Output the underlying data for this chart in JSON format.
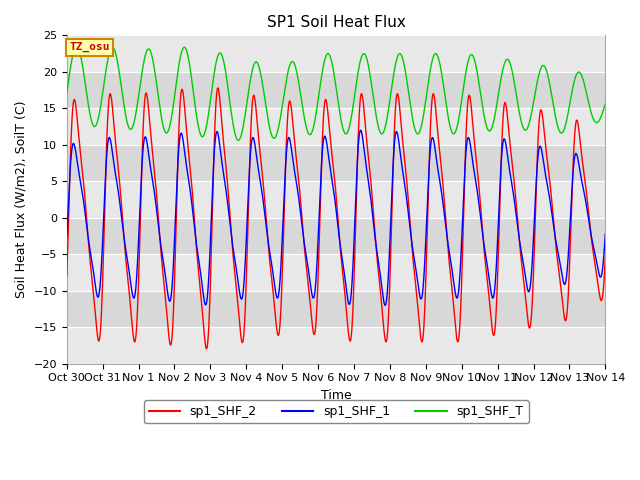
{
  "title": "SP1 Soil Heat Flux",
  "xlabel": "Time",
  "ylabel": "Soil Heat Flux (W/m2), SoilT (C)",
  "ylim": [
    -20,
    25
  ],
  "xlim": [
    0,
    15
  ],
  "yticks": [
    -20,
    -15,
    -10,
    -5,
    0,
    5,
    10,
    15,
    20,
    25
  ],
  "xtick_labels": [
    "Oct 30",
    "Oct 31",
    "Nov 1",
    "Nov 2",
    "Nov 3",
    "Nov 4",
    "Nov 5",
    "Nov 6",
    "Nov 7",
    "Nov 8",
    "Nov 9",
    "Nov 10",
    "Nov 11",
    "Nov 12",
    "Nov 13",
    "Nov 14"
  ],
  "xtick_positions": [
    0,
    1,
    2,
    3,
    4,
    5,
    6,
    7,
    8,
    9,
    10,
    11,
    12,
    13,
    14,
    15
  ],
  "color_red": "#ff0000",
  "color_blue": "#0000ff",
  "color_green": "#00cc00",
  "bg_color": "#d8d8d8",
  "band_color": "#e8e8e8",
  "legend_labels": [
    "sp1_SHF_2",
    "sp1_SHF_1",
    "sp1_SHF_T"
  ],
  "tz_label": "TZ_osu",
  "title_fontsize": 11,
  "axis_fontsize": 9,
  "tick_fontsize": 8
}
